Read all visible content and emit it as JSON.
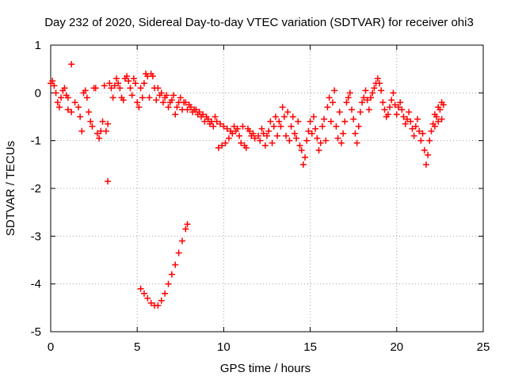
{
  "chart_data": {
    "type": "scatter",
    "title": "Day 232 of 2020, Sidereal Day-to-day VTEC variation (SDTVAR) for receiver ohi3",
    "xlabel": "GPS time / hours",
    "ylabel": "SDTVAR / TECUs",
    "xlim": [
      0,
      25
    ],
    "ylim": [
      -5,
      1
    ],
    "x_ticks": [
      0,
      5,
      10,
      15,
      20,
      25
    ],
    "y_ticks": [
      1,
      0,
      -1,
      -2,
      -3,
      -4,
      -5
    ],
    "grid": true,
    "marker": "+",
    "series": [
      {
        "name": "SDTVAR",
        "color": "#ff0000",
        "points": [
          [
            0.0,
            0.2
          ],
          [
            0.1,
            0.25
          ],
          [
            0.2,
            0.15
          ],
          [
            0.3,
            0.0
          ],
          [
            0.4,
            -0.2
          ],
          [
            0.5,
            -0.3
          ],
          [
            0.6,
            -0.1
          ],
          [
            0.7,
            0.05
          ],
          [
            0.8,
            0.1
          ],
          [
            0.9,
            -0.05
          ],
          [
            1.0,
            -0.1
          ],
          [
            1.2,
            0.6
          ],
          [
            1.0,
            -0.35
          ],
          [
            1.2,
            -0.4
          ],
          [
            1.4,
            -0.2
          ],
          [
            1.6,
            -0.3
          ],
          [
            1.7,
            -0.5
          ],
          [
            1.8,
            -0.8
          ],
          [
            1.9,
            0.0
          ],
          [
            2.0,
            0.05
          ],
          [
            2.1,
            -0.1
          ],
          [
            2.2,
            -0.4
          ],
          [
            2.3,
            -0.6
          ],
          [
            2.4,
            -0.7
          ],
          [
            2.5,
            0.1
          ],
          [
            2.6,
            0.1
          ],
          [
            2.7,
            -0.85
          ],
          [
            2.8,
            -0.95
          ],
          [
            2.9,
            -0.8
          ],
          [
            3.0,
            -0.6
          ],
          [
            3.1,
            0.15
          ],
          [
            3.2,
            -0.8
          ],
          [
            3.3,
            -0.65
          ],
          [
            3.3,
            -1.85
          ],
          [
            3.4,
            0.2
          ],
          [
            3.5,
            0.1
          ],
          [
            3.6,
            -0.1
          ],
          [
            3.7,
            0.15
          ],
          [
            3.8,
            0.3
          ],
          [
            3.9,
            0.2
          ],
          [
            4.0,
            0.1
          ],
          [
            4.1,
            -0.1
          ],
          [
            4.2,
            -0.15
          ],
          [
            4.3,
            0.3
          ],
          [
            4.4,
            0.35
          ],
          [
            4.5,
            0.25
          ],
          [
            4.6,
            0.1
          ],
          [
            4.7,
            -0.05
          ],
          [
            4.8,
            0.3
          ],
          [
            4.9,
            0.2
          ],
          [
            5.0,
            -0.2
          ],
          [
            5.1,
            -0.3
          ],
          [
            5.2,
            0.1
          ],
          [
            5.3,
            -0.1
          ],
          [
            5.4,
            0.2
          ],
          [
            5.5,
            0.4
          ],
          [
            5.6,
            0.35
          ],
          [
            5.7,
            -0.1
          ],
          [
            5.8,
            0.4
          ],
          [
            5.9,
            0.35
          ],
          [
            6.0,
            0.1
          ],
          [
            6.1,
            -0.15
          ],
          [
            6.2,
            0.1
          ],
          [
            6.3,
            -0.05
          ],
          [
            6.4,
            0.0
          ],
          [
            6.5,
            -0.2
          ],
          [
            6.6,
            -0.1
          ],
          [
            6.7,
            -0.05
          ],
          [
            6.8,
            -0.3
          ],
          [
            6.9,
            -0.2
          ],
          [
            7.0,
            -0.15
          ],
          [
            7.1,
            -0.05
          ],
          [
            7.2,
            -0.45
          ],
          [
            7.3,
            -0.3
          ],
          [
            7.4,
            -0.2
          ],
          [
            7.5,
            -0.1
          ],
          [
            7.6,
            -0.35
          ],
          [
            7.7,
            -0.2
          ],
          [
            7.8,
            -0.2
          ],
          [
            7.9,
            -0.35
          ],
          [
            8.0,
            -0.25
          ],
          [
            8.1,
            -0.3
          ],
          [
            8.2,
            -0.4
          ],
          [
            8.3,
            -0.35
          ],
          [
            8.4,
            -0.35
          ],
          [
            8.5,
            -0.45
          ],
          [
            8.6,
            -0.4
          ],
          [
            8.7,
            -0.5
          ],
          [
            8.8,
            -0.45
          ],
          [
            8.9,
            -0.6
          ],
          [
            9.0,
            -0.5
          ],
          [
            9.1,
            -0.55
          ],
          [
            9.2,
            -0.65
          ],
          [
            9.3,
            -0.6
          ],
          [
            9.4,
            -0.7
          ],
          [
            9.5,
            -0.5
          ],
          [
            9.6,
            -0.6
          ],
          [
            9.7,
            -1.15
          ],
          [
            9.8,
            -0.65
          ],
          [
            9.9,
            -1.1
          ],
          [
            10.0,
            -0.7
          ],
          [
            10.1,
            -1.05
          ],
          [
            10.2,
            -0.75
          ],
          [
            10.3,
            -0.95
          ],
          [
            10.4,
            -0.8
          ],
          [
            10.5,
            -0.85
          ],
          [
            10.6,
            -0.7
          ],
          [
            10.7,
            -0.8
          ],
          [
            10.8,
            -0.75
          ],
          [
            10.9,
            -0.9
          ],
          [
            11.0,
            -1.05
          ],
          [
            11.1,
            -0.7
          ],
          [
            11.2,
            -1.1
          ],
          [
            11.3,
            -1.15
          ],
          [
            11.4,
            -0.75
          ],
          [
            11.5,
            -0.8
          ],
          [
            11.6,
            -0.9
          ],
          [
            11.7,
            -0.85
          ],
          [
            11.8,
            -0.95
          ],
          [
            12.0,
            -0.9
          ],
          [
            12.1,
            -1.0
          ],
          [
            12.2,
            -0.75
          ],
          [
            12.3,
            -0.85
          ],
          [
            12.4,
            -1.1
          ],
          [
            12.5,
            -0.9
          ],
          [
            12.6,
            -0.8
          ],
          [
            12.7,
            -0.6
          ],
          [
            12.8,
            -1.05
          ],
          [
            12.9,
            -0.7
          ],
          [
            13.0,
            -0.5
          ],
          [
            13.1,
            -0.9
          ],
          [
            13.2,
            -0.6
          ],
          [
            13.3,
            -0.7
          ],
          [
            13.4,
            -0.3
          ],
          [
            13.5,
            -0.5
          ],
          [
            13.6,
            -0.9
          ],
          [
            13.7,
            -0.4
          ],
          [
            13.8,
            -1.0
          ],
          [
            13.9,
            -0.7
          ],
          [
            14.0,
            -0.5
          ],
          [
            14.1,
            -0.85
          ],
          [
            14.2,
            -0.95
          ],
          [
            14.3,
            -0.6
          ],
          [
            14.4,
            -1.1
          ],
          [
            14.5,
            -1.2
          ],
          [
            14.6,
            -1.5
          ],
          [
            14.7,
            -1.35
          ],
          [
            14.8,
            -1.0
          ],
          [
            14.9,
            -0.8
          ],
          [
            15.0,
            -0.6
          ],
          [
            15.1,
            -0.85
          ],
          [
            15.2,
            -0.5
          ],
          [
            15.3,
            -0.75
          ],
          [
            15.4,
            -0.95
          ],
          [
            15.5,
            -1.2
          ],
          [
            15.6,
            -1.05
          ],
          [
            15.7,
            -0.7
          ],
          [
            15.8,
            -0.55
          ],
          [
            15.9,
            -1.0
          ],
          [
            16.0,
            -0.3
          ],
          [
            16.1,
            -0.1
          ],
          [
            16.2,
            -0.6
          ],
          [
            16.3,
            -0.2
          ],
          [
            16.4,
            0.05
          ],
          [
            16.5,
            -0.7
          ],
          [
            16.6,
            -0.95
          ],
          [
            16.7,
            -0.4
          ],
          [
            16.8,
            -1.05
          ],
          [
            16.9,
            -0.85
          ],
          [
            17.0,
            -0.6
          ],
          [
            17.1,
            -0.2
          ],
          [
            17.2,
            -0.1
          ],
          [
            17.3,
            0.0
          ],
          [
            17.4,
            -0.35
          ],
          [
            17.5,
            -0.55
          ],
          [
            17.6,
            -0.85
          ],
          [
            17.7,
            -1.05
          ],
          [
            17.8,
            -0.7
          ],
          [
            17.9,
            -0.4
          ],
          [
            18.0,
            -0.2
          ],
          [
            18.1,
            -0.1
          ],
          [
            18.2,
            0.05
          ],
          [
            18.3,
            -0.15
          ],
          [
            18.4,
            -0.35
          ],
          [
            18.5,
            -0.1
          ],
          [
            18.6,
            0.0
          ],
          [
            18.7,
            0.1
          ],
          [
            18.8,
            0.2
          ],
          [
            18.9,
            0.3
          ],
          [
            19.0,
            0.2
          ],
          [
            19.1,
            0.05
          ],
          [
            19.2,
            -0.2
          ],
          [
            19.3,
            -0.35
          ],
          [
            19.4,
            -0.5
          ],
          [
            19.5,
            -0.45
          ],
          [
            19.6,
            -0.3
          ],
          [
            19.7,
            -0.15
          ],
          [
            19.8,
            0.0
          ],
          [
            19.9,
            -0.25
          ],
          [
            20.0,
            -0.45
          ],
          [
            20.1,
            -0.3
          ],
          [
            20.2,
            -0.2
          ],
          [
            20.3,
            -0.35
          ],
          [
            20.4,
            -0.5
          ],
          [
            20.5,
            -0.65
          ],
          [
            20.6,
            -0.55
          ],
          [
            20.7,
            -0.4
          ],
          [
            20.8,
            -0.6
          ],
          [
            20.9,
            -0.75
          ],
          [
            21.0,
            -0.9
          ],
          [
            21.1,
            -0.7
          ],
          [
            21.2,
            -0.55
          ],
          [
            21.3,
            -0.8
          ],
          [
            21.4,
            -1.0
          ],
          [
            21.5,
            -0.85
          ],
          [
            21.6,
            -1.2
          ],
          [
            21.7,
            -1.5
          ],
          [
            21.8,
            -1.3
          ],
          [
            21.9,
            -1.0
          ],
          [
            22.0,
            -0.8
          ],
          [
            22.1,
            -0.65
          ],
          [
            22.2,
            -0.7
          ],
          [
            22.3,
            -0.5
          ],
          [
            22.4,
            -0.3
          ],
          [
            22.5,
            -0.35
          ],
          [
            22.6,
            -0.2
          ],
          [
            22.7,
            -0.25
          ],
          [
            22.6,
            -0.55
          ],
          [
            22.4,
            -0.6
          ],
          [
            22.2,
            -0.45
          ],
          [
            5.2,
            -4.1
          ],
          [
            5.4,
            -4.2
          ],
          [
            5.6,
            -4.3
          ],
          [
            5.8,
            -4.4
          ],
          [
            6.0,
            -4.45
          ],
          [
            6.2,
            -4.45
          ],
          [
            6.4,
            -4.35
          ],
          [
            6.6,
            -4.2
          ],
          [
            6.8,
            -4.0
          ],
          [
            7.0,
            -3.8
          ],
          [
            7.2,
            -3.6
          ],
          [
            7.4,
            -3.35
          ],
          [
            7.6,
            -3.1
          ],
          [
            7.8,
            -2.85
          ],
          [
            7.9,
            -2.75
          ]
        ]
      }
    ]
  }
}
